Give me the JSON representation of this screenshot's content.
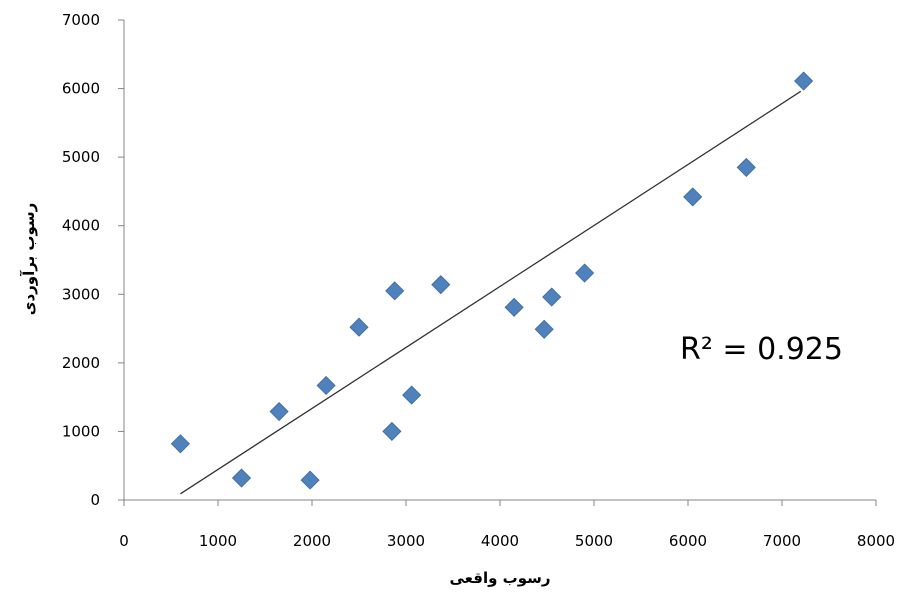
{
  "chart_data": {
    "type": "scatter",
    "xlabel": "رسوب واقعی",
    "ylabel": "رسوب برآوردی",
    "xlim": [
      0,
      8000
    ],
    "ylim": [
      0,
      7000
    ],
    "x_ticks": [
      "0",
      "1000",
      "2000",
      "3000",
      "4000",
      "5000",
      "6000",
      "7000",
      "8000"
    ],
    "y_ticks": [
      "0",
      "1000",
      "2000",
      "3000",
      "4000",
      "5000",
      "6000",
      "7000"
    ],
    "grid": false,
    "legend": "none",
    "marker": "diamond",
    "marker_color": "#4f81bd",
    "trendline_color": "#333333",
    "series": [
      {
        "points": [
          [
            600,
            820
          ],
          [
            1250,
            320
          ],
          [
            1650,
            1290
          ],
          [
            1980,
            290
          ],
          [
            2150,
            1670
          ],
          [
            2500,
            2520
          ],
          [
            2850,
            1000
          ],
          [
            2880,
            3050
          ],
          [
            3060,
            1530
          ],
          [
            3370,
            3140
          ],
          [
            4150,
            2810
          ],
          [
            4470,
            2490
          ],
          [
            4550,
            2960
          ],
          [
            4900,
            3310
          ],
          [
            6050,
            4420
          ],
          [
            6620,
            4850
          ],
          [
            7230,
            6110
          ]
        ]
      }
    ],
    "trendline": {
      "x": [
        600,
        7200
      ],
      "y": [
        90,
        5960
      ]
    },
    "annotation": "R² = 0.925"
  }
}
